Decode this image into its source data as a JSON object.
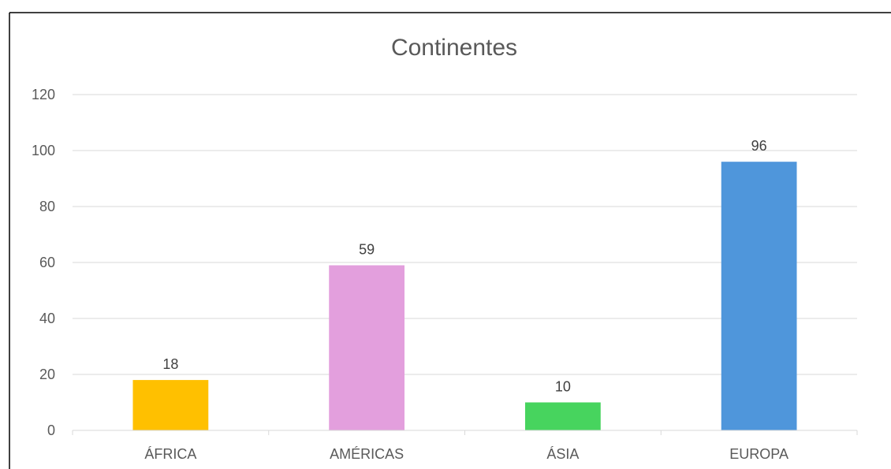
{
  "chart_data": {
    "type": "bar",
    "title": "Continentes",
    "categories": [
      "ÁFRICA",
      "AMÉRICAS",
      "ÁSIA",
      "EUROPA"
    ],
    "values": [
      18,
      59,
      10,
      96
    ],
    "bar_colors": [
      "#FFC000",
      "#E39FDD",
      "#47D45E",
      "#4F96DB"
    ],
    "data_labels": [
      "18",
      "59",
      "10",
      "96"
    ],
    "ylim": [
      0,
      120
    ],
    "y_ticks": [
      0,
      20,
      40,
      60,
      80,
      100,
      120
    ],
    "y_tick_labels": [
      "0",
      "20",
      "40",
      "60",
      "80",
      "100",
      "120"
    ],
    "grid": true,
    "legend": "none"
  }
}
